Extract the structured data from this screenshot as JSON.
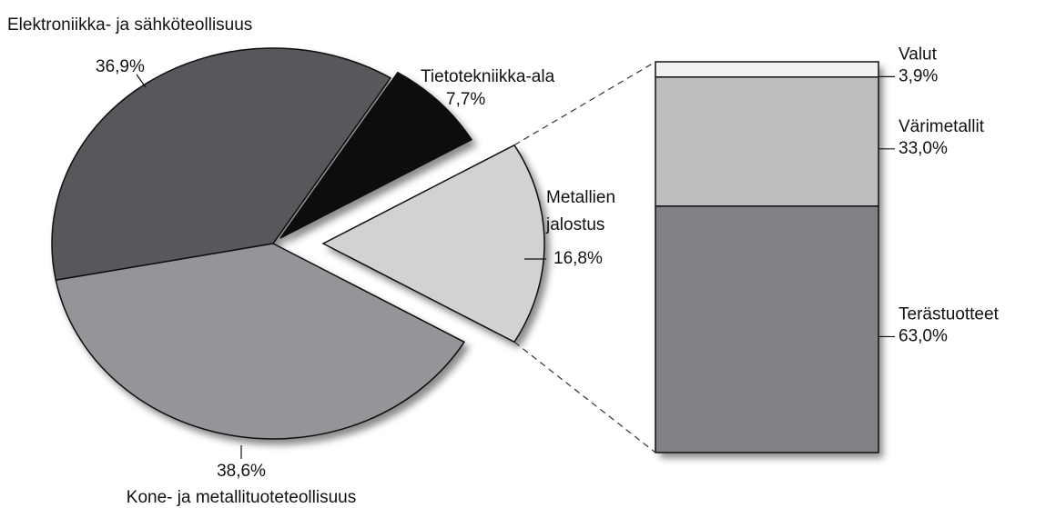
{
  "chart_data": {
    "type": "pie-of-bar",
    "pie": {
      "categories": [
        "Metallien jalostus",
        "Tietotekniikka-ala",
        "Elektroniikka- ja sähköteollisuus",
        "Kone- ja metallituoteteollisuus"
      ],
      "values": [
        16.8,
        7.7,
        36.9,
        38.6
      ],
      "value_labels": [
        "16,8%",
        "7,7%",
        "36,9%",
        "38,6%"
      ],
      "colors": [
        "#d1d2d4",
        "#0a0a0a",
        "#58595b",
        "#939598"
      ]
    },
    "bar": {
      "categories": [
        "Valut",
        "Värimetallit",
        "Terästuotteet"
      ],
      "values": [
        3.9,
        33.0,
        63.0
      ],
      "value_labels": [
        "3,9%",
        "33,0%",
        "63,0%"
      ],
      "colors": [
        "#f1f1f2",
        "#bcbec0",
        "#808285"
      ]
    }
  }
}
